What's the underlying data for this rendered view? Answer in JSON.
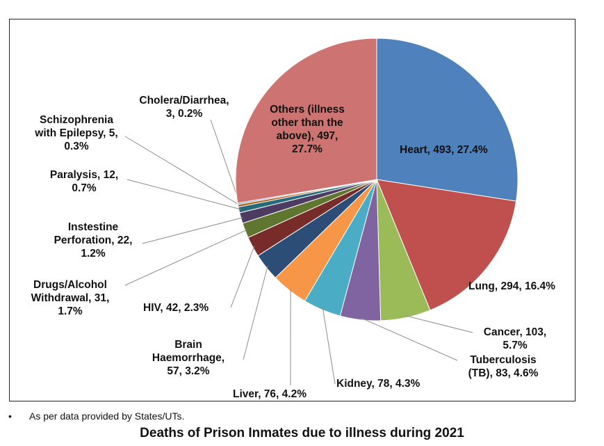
{
  "chart_data": {
    "type": "pie",
    "slices": [
      {
        "name": "Heart",
        "value": 493,
        "percent": 27.4,
        "color": "#4F81BD",
        "label_lines": [
          "Heart, 493, 27.4%"
        ]
      },
      {
        "name": "Lung",
        "value": 294,
        "percent": 16.4,
        "color": "#C0504D",
        "label_lines": [
          "Lung, 294, 16.4%"
        ]
      },
      {
        "name": "Cancer",
        "value": 103,
        "percent": 5.7,
        "color": "#9BBB59",
        "label_lines": [
          "Cancer, 103,",
          "5.7%"
        ]
      },
      {
        "name": "Tuberculosis (TB)",
        "value": 83,
        "percent": 4.6,
        "color": "#8064A2",
        "label_lines": [
          "Tuberculosis",
          "(TB), 83, 4.6%"
        ]
      },
      {
        "name": "Kidney",
        "value": 78,
        "percent": 4.3,
        "color": "#4BACC6",
        "label_lines": [
          "Kidney, 78, 4.3%"
        ]
      },
      {
        "name": "Liver",
        "value": 76,
        "percent": 4.2,
        "color": "#F79646",
        "label_lines": [
          "Liver, 76, 4.2%"
        ]
      },
      {
        "name": "Brain Haemorrhage",
        "value": 57,
        "percent": 3.2,
        "color": "#2C4D75",
        "label_lines": [
          "Brain",
          "Haemorrhage,",
          "57, 3.2%"
        ]
      },
      {
        "name": "HIV",
        "value": 42,
        "percent": 2.3,
        "color": "#772C2A",
        "label_lines": [
          "HIV, 42, 2.3%"
        ]
      },
      {
        "name": "Drugs/Alcohol Withdrawal",
        "value": 31,
        "percent": 1.7,
        "color": "#5F7530",
        "label_lines": [
          "Drugs/Alcohol",
          "Withdrawal, 31,",
          "1.7%"
        ]
      },
      {
        "name": "Instestine Perforation",
        "value": 22,
        "percent": 1.2,
        "color": "#4D3B62",
        "label_lines": [
          "Instestine",
          "Perforation, 22,",
          "1.2%"
        ]
      },
      {
        "name": "Paralysis",
        "value": 12,
        "percent": 0.7,
        "color": "#276A7C",
        "label_lines": [
          "Paralysis, 12,",
          "0.7%"
        ]
      },
      {
        "name": "Schizophrenia with Epilepsy",
        "value": 5,
        "percent": 0.3,
        "color": "#B65708",
        "label_lines": [
          "Schizophrenia",
          "with Epilepsy, 5,",
          "0.3%"
        ]
      },
      {
        "name": "Cholera/Diarrhea",
        "value": 3,
        "percent": 0.2,
        "color": "#729ACA",
        "label_lines": [
          "Cholera/Diarrhea,",
          "3, 0.2%"
        ]
      },
      {
        "name": "Others (illness other than the above)",
        "value": 497,
        "percent": 27.7,
        "color": "#CD7371",
        "label_lines": [
          "Others (illness",
          "other than the",
          "above), 497,",
          "27.7%"
        ]
      }
    ]
  },
  "footnote": {
    "bullet": "•",
    "text": "As per data provided by States/UTs."
  },
  "title": "Deaths of Prison Inmates due to illness during 2021"
}
